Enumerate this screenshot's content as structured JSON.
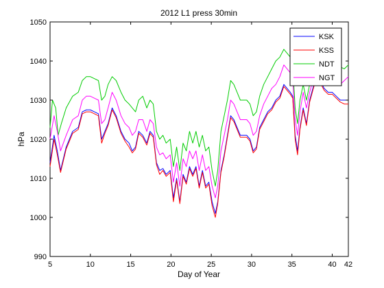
{
  "chart_data": {
    "type": "line",
    "title": "2012 L1 press 30min",
    "xlabel": "Day of Year",
    "ylabel": "hPa",
    "xlim": [
      5,
      42
    ],
    "ylim": [
      990,
      1050
    ],
    "xticks": [
      5,
      10,
      15,
      20,
      25,
      30,
      35,
      40,
      42
    ],
    "yticks": [
      990,
      1000,
      1010,
      1020,
      1030,
      1040,
      1050
    ],
    "grid": false,
    "legend": "top-right",
    "series": [
      {
        "name": "KSK",
        "color": "#0000ff",
        "x": [
          5,
          5.5,
          5.9,
          6.3,
          7,
          7.8,
          8.5,
          9,
          9.5,
          10,
          10.5,
          11,
          11.4,
          11.8,
          12.2,
          12.7,
          13.2,
          13.8,
          14.3,
          14.8,
          15.2,
          15.6,
          16,
          16.5,
          17,
          17.4,
          17.8,
          18.2,
          18.6,
          19,
          19.4,
          19.9,
          20.3,
          20.7,
          21.1,
          21.5,
          21.9,
          22.3,
          22.7,
          23.1,
          23.5,
          23.9,
          24.3,
          24.7,
          25.1,
          25.5,
          25.8,
          26.2,
          26.6,
          27,
          27.4,
          27.8,
          28.2,
          28.6,
          29,
          29.4,
          29.8,
          30.2,
          30.6,
          31,
          31.5,
          32,
          32.5,
          33,
          33.5,
          34,
          34.4,
          34.8,
          35.1,
          35.4,
          35.7,
          36,
          36.4,
          36.8,
          37.2,
          37.6,
          38,
          38.5,
          39,
          39.5,
          40,
          40.5,
          41,
          41.5,
          42
        ],
        "values": [
          1014,
          1021,
          1017,
          1012,
          1018,
          1022,
          1023,
          1027,
          1027.5,
          1027.5,
          1027,
          1026.5,
          1020,
          1022,
          1024,
          1028,
          1026,
          1022,
          1020,
          1019,
          1017,
          1018,
          1022,
          1021,
          1019,
          1022,
          1021,
          1014,
          1012,
          1012.5,
          1011,
          1012,
          1005,
          1010,
          1004,
          1011,
          1009,
          1013,
          1011,
          1013,
          1008,
          1012,
          1008,
          1009,
          1004,
          1001,
          1004,
          1012,
          1016,
          1021,
          1026,
          1025,
          1023,
          1021,
          1021,
          1021,
          1020,
          1017,
          1018,
          1023,
          1025,
          1027,
          1028,
          1030,
          1031,
          1034,
          1033,
          1032,
          1031,
          1021,
          1017,
          1023,
          1028,
          1024,
          1030,
          1033,
          1036,
          1035,
          1033,
          1032,
          1032,
          1031,
          1030,
          1030,
          1030
        ]
      },
      {
        "name": "KSS",
        "color": "#ff0000",
        "x": [
          5,
          5.5,
          5.9,
          6.3,
          7,
          7.8,
          8.5,
          9,
          9.5,
          10,
          10.5,
          11,
          11.4,
          11.8,
          12.2,
          12.7,
          13.2,
          13.8,
          14.3,
          14.8,
          15.2,
          15.6,
          16,
          16.5,
          17,
          17.4,
          17.8,
          18.2,
          18.6,
          19,
          19.4,
          19.9,
          20.3,
          20.7,
          21.1,
          21.5,
          21.9,
          22.3,
          22.7,
          23.1,
          23.5,
          23.9,
          24.3,
          24.7,
          25.1,
          25.5,
          25.8,
          26.2,
          26.6,
          27,
          27.4,
          27.8,
          28.2,
          28.6,
          29,
          29.4,
          29.8,
          30.2,
          30.6,
          31,
          31.5,
          32,
          32.5,
          33,
          33.5,
          34,
          34.4,
          34.8,
          35.1,
          35.4,
          35.7,
          36,
          36.4,
          36.8,
          37.2,
          37.6,
          38,
          38.5,
          39,
          39.5,
          40,
          40.5,
          41,
          41.5,
          42
        ],
        "values": [
          1013,
          1020,
          1016,
          1011.5,
          1017.5,
          1021.5,
          1022.5,
          1026.5,
          1027,
          1027,
          1026.5,
          1026,
          1019,
          1021.5,
          1023.5,
          1027.5,
          1025.5,
          1021.5,
          1019.5,
          1018,
          1016.5,
          1017.5,
          1021.5,
          1020.5,
          1018.5,
          1021.5,
          1020.5,
          1013.5,
          1011,
          1012,
          1010.5,
          1011.5,
          1004,
          1009.5,
          1003.5,
          1010.5,
          1008.5,
          1012.5,
          1010.5,
          1012.5,
          1007.5,
          1011.5,
          1007.5,
          1008.5,
          1003,
          1000,
          1003.5,
          1011.5,
          1015.5,
          1020.5,
          1025.5,
          1024.5,
          1022.5,
          1020.5,
          1020.5,
          1020.5,
          1019.5,
          1016.5,
          1017.5,
          1022.5,
          1024.5,
          1026.5,
          1027.5,
          1029.5,
          1030.5,
          1033.5,
          1032.5,
          1031.5,
          1030.5,
          1020,
          1016,
          1022.5,
          1027.5,
          1023.5,
          1029.5,
          1032.5,
          1035.5,
          1034.5,
          1032.5,
          1031.5,
          1031.5,
          1030.5,
          1029.5,
          1029,
          1029
        ]
      },
      {
        "name": "NDT",
        "color": "#00cc00",
        "x": [
          5,
          5.3,
          5.7,
          6,
          6.4,
          7,
          7.8,
          8.5,
          9,
          9.5,
          10,
          10.5,
          11,
          11.4,
          11.8,
          12.2,
          12.7,
          13.2,
          13.8,
          14.3,
          14.8,
          15.2,
          15.6,
          16,
          16.5,
          17,
          17.4,
          17.8,
          18.2,
          18.6,
          19,
          19.4,
          19.9,
          20.3,
          20.7,
          21.1,
          21.5,
          21.9,
          22.3,
          22.7,
          23.1,
          23.5,
          23.9,
          24.3,
          24.7,
          25.1,
          25.5,
          25.8,
          26.2,
          26.6,
          27,
          27.4,
          27.8,
          28.2,
          28.6,
          29,
          29.4,
          29.8,
          30.2,
          30.6,
          31,
          31.5,
          32,
          32.5,
          33,
          33.5,
          34,
          34.4,
          34.8,
          35.1,
          35.4,
          35.7,
          36,
          36.4,
          36.8,
          37.2,
          37.6,
          38,
          38.5,
          39,
          39.5,
          40,
          40.5,
          41,
          41.5,
          42
        ],
        "values": [
          1023,
          1030,
          1028,
          1021,
          1024,
          1028,
          1031,
          1032,
          1035,
          1036,
          1036,
          1035.5,
          1035,
          1030,
          1031,
          1034,
          1036,
          1035,
          1032,
          1030,
          1029,
          1028,
          1027,
          1030,
          1031,
          1028,
          1030,
          1029,
          1022,
          1020,
          1021,
          1019,
          1020,
          1013,
          1018,
          1012,
          1019,
          1017,
          1022,
          1019,
          1022,
          1018,
          1021,
          1017,
          1018,
          1012,
          1008,
          1012,
          1022,
          1026,
          1030,
          1035,
          1034,
          1032,
          1030,
          1030,
          1030,
          1029,
          1026,
          1027,
          1031,
          1034,
          1036,
          1038,
          1040,
          1041,
          1043,
          1042,
          1041,
          1039,
          1028,
          1024,
          1030,
          1034,
          1030,
          1034,
          1036,
          1037,
          1038,
          1038.5,
          1039,
          1039,
          1038.5,
          1038.5,
          1038,
          1039
        ]
      },
      {
        "name": "NGT",
        "color": "#ff00ff",
        "x": [
          5,
          5.5,
          5.9,
          6.3,
          7,
          7.8,
          8.5,
          9,
          9.5,
          10,
          10.5,
          11,
          11.4,
          11.8,
          12.2,
          12.7,
          13.2,
          13.8,
          14.3,
          14.8,
          15.2,
          15.6,
          16,
          16.5,
          17,
          17.4,
          17.8,
          18.2,
          18.6,
          19,
          19.4,
          19.9,
          20.3,
          20.7,
          21.1,
          21.5,
          21.9,
          22.3,
          22.7,
          23.1,
          23.5,
          23.9,
          24.3,
          24.7,
          25.1,
          25.5,
          25.8,
          26.2,
          26.6,
          27,
          27.4,
          27.8,
          28.2,
          28.6,
          29,
          29.4,
          29.8,
          30.2,
          30.6,
          31,
          31.5,
          32,
          32.5,
          33,
          33.5,
          34,
          34.4,
          34.8,
          35.1,
          35.4,
          35.7,
          36,
          36.4,
          36.8,
          37.2,
          37.6,
          38,
          38.5,
          39,
          39.5,
          40,
          40.5,
          41,
          41.5,
          42
        ],
        "values": [
          1020,
          1026,
          1022,
          1017,
          1021,
          1025,
          1026,
          1030,
          1031,
          1031,
          1030.5,
          1030,
          1024,
          1025,
          1028,
          1032,
          1030,
          1026,
          1024,
          1023,
          1021,
          1022,
          1025,
          1025,
          1022,
          1025,
          1024,
          1018,
          1016,
          1016.5,
          1015,
          1016,
          1009,
          1014,
          1008,
          1015,
          1013,
          1017,
          1015,
          1017,
          1012,
          1016,
          1012,
          1013,
          1008,
          1005,
          1008,
          1017,
          1021,
          1025,
          1030,
          1029,
          1027,
          1025,
          1025,
          1025,
          1024,
          1021,
          1022,
          1026,
          1029,
          1031,
          1033,
          1034,
          1036,
          1039,
          1038,
          1037,
          1035,
          1025,
          1021,
          1027,
          1032,
          1028,
          1032,
          1035,
          1037,
          1036,
          1035.5,
          1035,
          1035,
          1034,
          1034,
          1035,
          1036
        ]
      }
    ]
  }
}
